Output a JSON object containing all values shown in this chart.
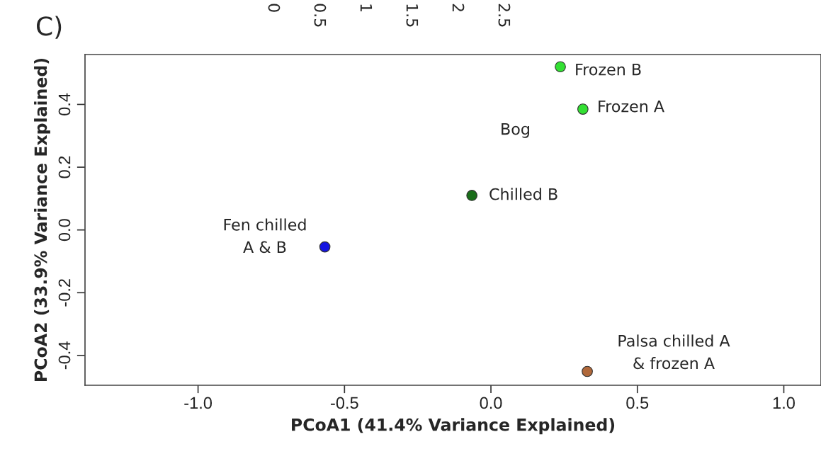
{
  "chart_data": {
    "type": "scatter",
    "xlabel": "PCoA1 (41.4% Variance Explained)",
    "ylabel": "PCoA2 (33.9% Variance Explained)",
    "series": [
      {
        "color": "#33e033",
        "x": [
          0.237,
          0.314
        ],
        "values": [
          0.52,
          0.385
        ]
      },
      {
        "color": "#1a6e1a",
        "x": [
          -0.065
        ],
        "values": [
          0.11
        ]
      },
      {
        "color": "#1414e0",
        "x": [
          -0.567
        ],
        "values": [
          -0.054
        ]
      },
      {
        "color": "#b0683a",
        "x": [
          0.329
        ],
        "values": [
          -0.451
        ]
      }
    ],
    "annotations": [
      "C)",
      "0",
      "0.5",
      "1",
      "1.5",
      "2",
      "2.5",
      "Frozen B",
      "Frozen A",
      "Bog",
      "Chilled B",
      "Fen chilled\nA & B",
      "Palsa chilled A\n& frozen A"
    ],
    "xlim": [
      -1.386,
      1.127
    ],
    "ylim": [
      -0.495,
      0.559
    ],
    "xticks": [
      {
        "value": -1,
        "label": "-1.0"
      },
      -0.5,
      {
        "value": 0,
        "label": "0.0"
      },
      0.5,
      {
        "value": 1,
        "label": "1.0"
      }
    ],
    "yticks": [
      -0.4,
      -0.2,
      {
        "value": 0,
        "label": "0.0"
      },
      0.2,
      0.4
    ],
    "marker": "circle",
    "grid": false,
    "legend": false
  }
}
